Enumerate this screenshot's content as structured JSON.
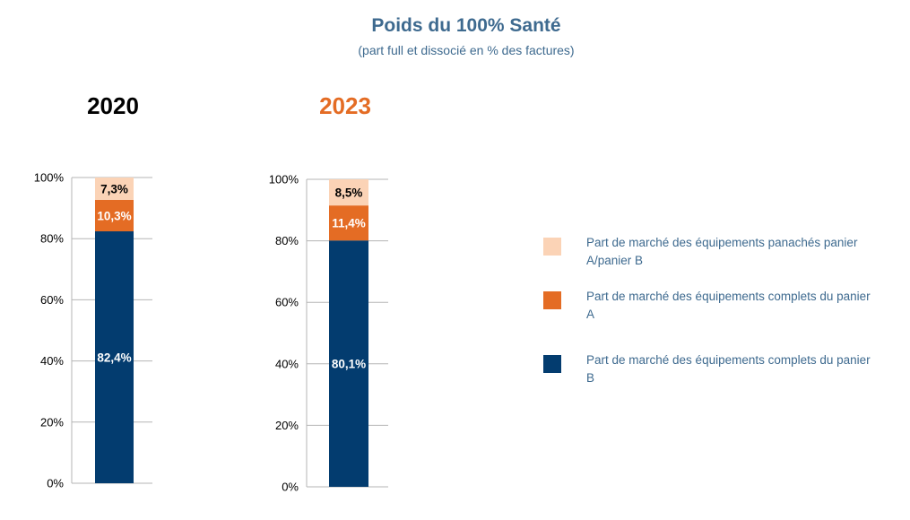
{
  "title": "Poids du 100% Santé",
  "subtitle": "(part full et dissocié en % des factures)",
  "colors": {
    "panache": "#fbd3b6",
    "panier_a": "#e46c24",
    "panier_b": "#033c6f",
    "year_2020": "#000000",
    "year_2023": "#e46c24"
  },
  "legend": [
    {
      "label": "Part de marché des équipements panachés panier A/panier B",
      "color": "#fbd3b6"
    },
    {
      "label": "Part de marché des équipements complets du panier A",
      "color": "#e46c24"
    },
    {
      "label": "Part de marché des équipements complets du panier B",
      "color": "#033c6f"
    }
  ],
  "chart_data": [
    {
      "type": "bar",
      "stacked": true,
      "title": "2020",
      "ylim": [
        0,
        100
      ],
      "yticks": [
        "0%",
        "20%",
        "40%",
        "60%",
        "80%",
        "100%"
      ],
      "series": [
        {
          "name": "Part de marché des équipements complets du panier B",
          "values": [
            82.4
          ],
          "labels": [
            "82,4%"
          ]
        },
        {
          "name": "Part de marché des équipements complets du panier A",
          "values": [
            10.3
          ],
          "labels": [
            "10,3%"
          ]
        },
        {
          "name": "Part de marché des équipements panachés panier A/panier B",
          "values": [
            7.3
          ],
          "labels": [
            "7,3%"
          ]
        }
      ]
    },
    {
      "type": "bar",
      "stacked": true,
      "title": "2023",
      "ylim": [
        0,
        100
      ],
      "yticks": [
        "0%",
        "20%",
        "40%",
        "60%",
        "80%",
        "100%"
      ],
      "series": [
        {
          "name": "Part de marché des équipements complets du panier B",
          "values": [
            80.1
          ],
          "labels": [
            "80,1%"
          ]
        },
        {
          "name": "Part de marché des équipements complets du panier A",
          "values": [
            11.4
          ],
          "labels": [
            "11,4%"
          ]
        },
        {
          "name": "Part de marché des équipements panachés panier A/panier B",
          "values": [
            8.5
          ],
          "labels": [
            "8,5%"
          ]
        }
      ]
    }
  ]
}
